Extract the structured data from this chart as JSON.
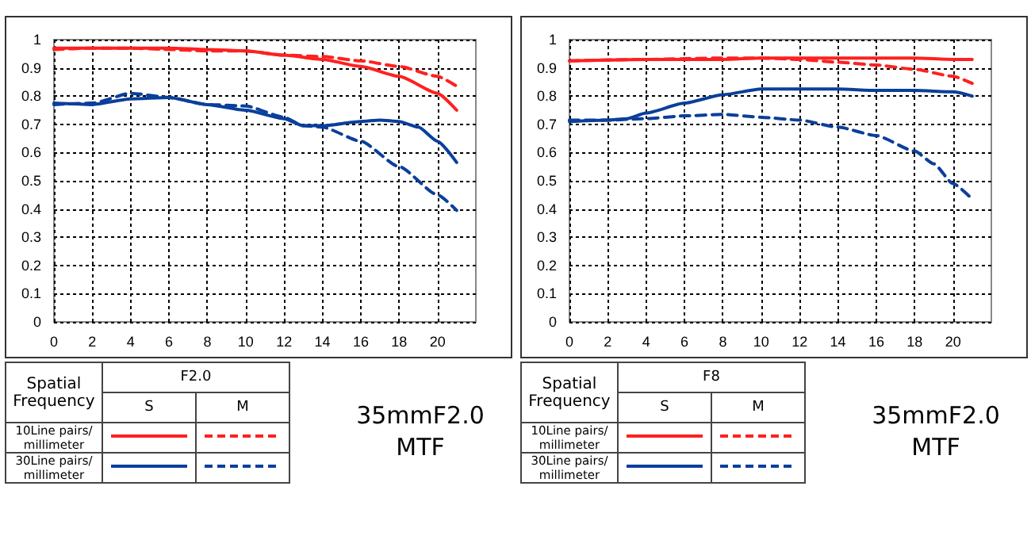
{
  "chart_data": [
    {
      "type": "line",
      "title": "35mmF2.0 MTF",
      "subtitle": "F2.0",
      "legend_title": "Spatial Frequency",
      "annotations": [
        "S",
        "M",
        "10Line pairs/ millimeter",
        "30Line pairs/ millimeter"
      ],
      "grid": true,
      "marker": "none",
      "xlim": [
        0,
        22
      ],
      "xticks": [
        0,
        2,
        4,
        6,
        8,
        10,
        12,
        14,
        16,
        18,
        20
      ],
      "ylim": [
        0,
        1
      ],
      "yticks": [
        0,
        0.1,
        0.2,
        0.3,
        0.4,
        0.5,
        0.6,
        0.7,
        0.8,
        0.9,
        1
      ],
      "series": [
        {
          "color": "#ff2020",
          "line_style": "solid",
          "x": [
            0,
            2,
            4,
            6,
            8,
            10,
            12,
            14,
            16,
            18,
            20,
            21
          ],
          "values": [
            0.97,
            0.97,
            0.97,
            0.97,
            0.965,
            0.96,
            0.945,
            0.93,
            0.905,
            0.87,
            0.81,
            0.75
          ]
        },
        {
          "color": "#ff2020",
          "line_style": "dashed",
          "x": [
            0,
            2,
            4,
            6,
            8,
            10,
            12,
            14,
            16,
            18,
            20,
            21
          ],
          "values": [
            0.965,
            0.97,
            0.97,
            0.965,
            0.96,
            0.96,
            0.945,
            0.94,
            0.925,
            0.905,
            0.87,
            0.835
          ]
        },
        {
          "color": "#0a3f9c",
          "line_style": "solid",
          "x": [
            0,
            2,
            4,
            6,
            8,
            10,
            12,
            13,
            14,
            16,
            17,
            18,
            19,
            20,
            21
          ],
          "values": [
            0.775,
            0.77,
            0.79,
            0.795,
            0.77,
            0.75,
            0.72,
            0.695,
            0.695,
            0.71,
            0.715,
            0.71,
            0.69,
            0.64,
            0.565
          ]
        },
        {
          "color": "#0a3f9c",
          "line_style": "dashed",
          "x": [
            0,
            2,
            4,
            6,
            8,
            10,
            12,
            13,
            14,
            16,
            18,
            20,
            21
          ],
          "values": [
            0.77,
            0.775,
            0.81,
            0.795,
            0.77,
            0.765,
            0.725,
            0.695,
            0.69,
            0.64,
            0.55,
            0.45,
            0.395
          ]
        }
      ]
    },
    {
      "type": "line",
      "title": "35mmF2.0 MTF",
      "subtitle": "F8",
      "legend_title": "Spatial Frequency",
      "annotations": [
        "S",
        "M",
        "10Line pairs/ millimeter",
        "30Line pairs/ millimeter"
      ],
      "grid": true,
      "marker": "none",
      "xlim": [
        0,
        22
      ],
      "xticks": [
        0,
        2,
        4,
        6,
        8,
        10,
        12,
        14,
        16,
        18,
        20
      ],
      "ylim": [
        0,
        1
      ],
      "yticks": [
        0,
        0.1,
        0.2,
        0.3,
        0.4,
        0.5,
        0.6,
        0.7,
        0.8,
        0.9,
        1
      ],
      "series": [
        {
          "color": "#ff2020",
          "line_style": "solid",
          "x": [
            0,
            4,
            8,
            10,
            14,
            18,
            20,
            21
          ],
          "values": [
            0.925,
            0.93,
            0.93,
            0.935,
            0.935,
            0.935,
            0.93,
            0.93
          ]
        },
        {
          "color": "#ff2020",
          "line_style": "dashed",
          "x": [
            0,
            4,
            8,
            10,
            12,
            14,
            16,
            18,
            20,
            21
          ],
          "values": [
            0.925,
            0.93,
            0.935,
            0.935,
            0.93,
            0.92,
            0.91,
            0.895,
            0.87,
            0.845
          ]
        },
        {
          "color": "#0a3f9c",
          "line_style": "solid",
          "x": [
            0,
            2,
            3,
            4,
            6,
            8,
            10,
            12,
            14,
            16,
            18,
            20,
            21
          ],
          "values": [
            0.71,
            0.715,
            0.72,
            0.74,
            0.775,
            0.805,
            0.825,
            0.825,
            0.825,
            0.82,
            0.82,
            0.815,
            0.8
          ]
        },
        {
          "color": "#0a3f9c",
          "line_style": "dashed",
          "x": [
            0,
            2,
            4,
            6,
            8,
            10,
            12,
            14,
            16,
            18,
            19,
            20,
            21
          ],
          "values": [
            0.715,
            0.715,
            0.72,
            0.73,
            0.735,
            0.725,
            0.715,
            0.69,
            0.66,
            0.605,
            0.56,
            0.49,
            0.435
          ]
        }
      ]
    }
  ]
}
